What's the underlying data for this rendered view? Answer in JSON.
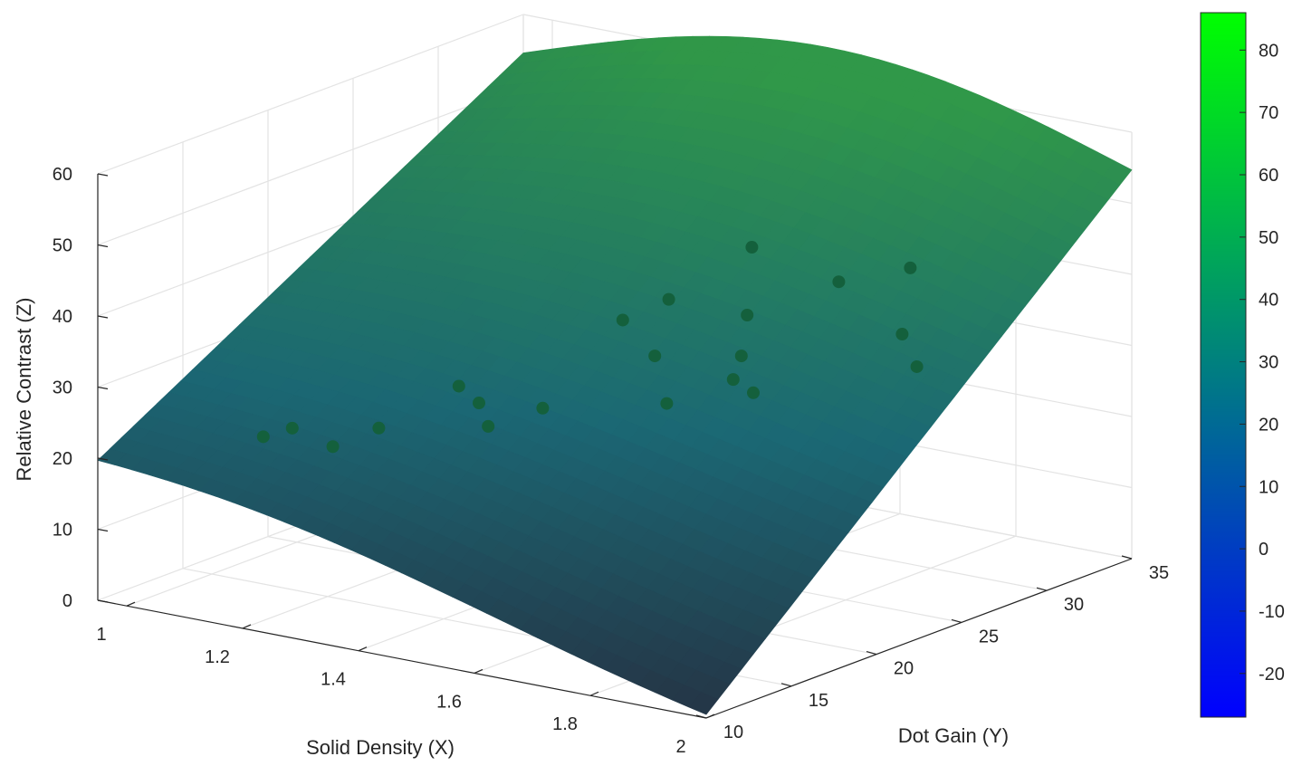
{
  "chart_data": {
    "type": "surface",
    "xlabel": "Solid Density (X)",
    "ylabel": "Dot Gain (Y)",
    "zlabel": "Relative Contrast (Z)",
    "x_ticks": [
      "1",
      "1.2",
      "1.4",
      "1.6",
      "1.8",
      "2"
    ],
    "y_ticks": [
      "10",
      "15",
      "20",
      "25",
      "30",
      "35"
    ],
    "z_ticks": [
      "0",
      "10",
      "20",
      "30",
      "40",
      "50",
      "60"
    ],
    "xlim": [
      0.95,
      2.0
    ],
    "ylim": [
      10,
      35
    ],
    "zlim": [
      0,
      60
    ],
    "grid": true,
    "colorbar": {
      "ticks": [
        "80",
        "70",
        "60",
        "50",
        "40",
        "30",
        "20",
        "10",
        "0",
        "-10",
        "-20"
      ],
      "range": [
        -27,
        86
      ],
      "colors": [
        "#0000ff",
        "#00ff00"
      ]
    },
    "surface_corners": {
      "x_min_y_min": 19.7,
      "x_min_y_max": 54.6,
      "x_max_y_min": 0.5,
      "x_max_y_max": 54.7,
      "peak_near_x": 1.55,
      "peak_near_y": 35,
      "peak_z": 63
    },
    "points": [
      {
        "x": 1.48,
        "y": 25.5,
        "z": 36.8
      },
      {
        "x": 1.63,
        "y": 25.0,
        "z": 37.4
      },
      {
        "x": 1.55,
        "y": 28.0,
        "z": 43.0
      },
      {
        "x": 1.7,
        "y": 28.0,
        "z": 40.5
      },
      {
        "x": 1.75,
        "y": 30.5,
        "z": 41.0
      },
      {
        "x": 1.43,
        "y": 24.5,
        "z": 34.0
      },
      {
        "x": 1.5,
        "y": 24.0,
        "z": 30.5
      },
      {
        "x": 1.62,
        "y": 25.0,
        "z": 31.5
      },
      {
        "x": 1.55,
        "y": 23.0,
        "z": 25.5
      },
      {
        "x": 1.65,
        "y": 23.5,
        "z": 30.0
      },
      {
        "x": 1.67,
        "y": 24.0,
        "z": 28.0
      },
      {
        "x": 1.25,
        "y": 21.0,
        "z": 25.0
      },
      {
        "x": 1.27,
        "y": 21.5,
        "z": 22.5
      },
      {
        "x": 1.38,
        "y": 21.5,
        "z": 23.5
      },
      {
        "x": 1.33,
        "y": 20.0,
        "z": 21.5
      },
      {
        "x": 1.2,
        "y": 18.0,
        "z": 21.0
      },
      {
        "x": 1.15,
        "y": 17.0,
        "z": 18.5
      },
      {
        "x": 1.08,
        "y": 17.0,
        "z": 20.0
      },
      {
        "x": 1.03,
        "y": 17.0,
        "z": 18.0
      },
      {
        "x": 1.78,
        "y": 29.0,
        "z": 33.5
      },
      {
        "x": 1.82,
        "y": 28.5,
        "z": 30.0
      }
    ]
  }
}
